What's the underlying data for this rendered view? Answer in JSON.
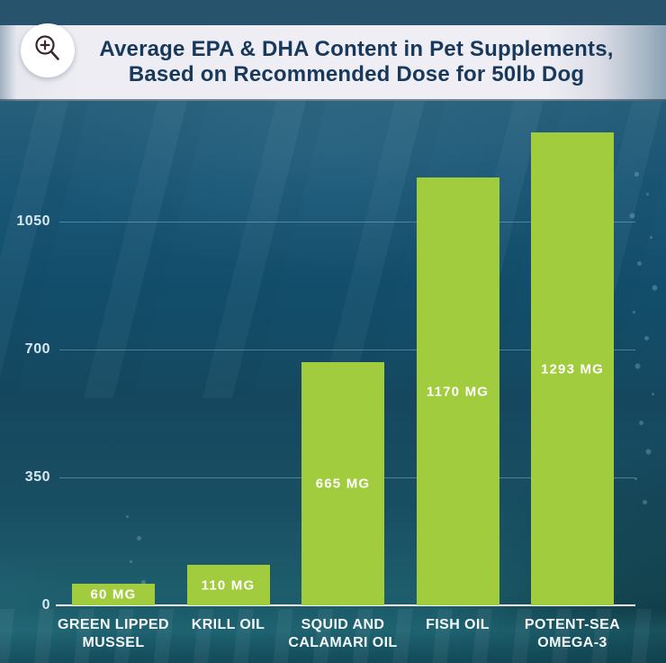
{
  "header": {
    "title_line1": "Average EPA & DHA Content in Pet Supplements,",
    "title_line2": "Based on Recommended Dose for 50lb Dog",
    "zoom_icon": "magnifier-zoom-in-icon"
  },
  "chart_data": {
    "type": "bar",
    "title": "Average EPA & DHA Content in Pet Supplements, Based on Recommended Dose for 50lb Dog",
    "unit": "MG",
    "categories": [
      "GREEN LIPPED MUSSEL",
      "KRILL OIL",
      "SQUID AND CALAMARI OIL",
      "FISH OIL",
      "POTENT-SEA OMEGA-3"
    ],
    "category_labels": [
      "GREEN LIPPED\nMUSSEL",
      "KRILL OIL",
      "SQUID AND\nCALAMARI OIL",
      "FISH OIL",
      "POTENT-SEA\nOMEGA-3"
    ],
    "values": [
      60,
      110,
      665,
      1170,
      1293
    ],
    "value_labels": [
      "60 MG",
      "110 MG",
      "665 MG",
      "1170 MG",
      "1293 MG"
    ],
    "y_ticks": [
      0,
      350,
      700,
      1050
    ],
    "ylim": [
      0,
      1350
    ],
    "grid": true,
    "legend": "none",
    "bar_color": "#a0cc3e",
    "value_label_color": "#ffffff",
    "axis_label_color": "#d8e8f0"
  },
  "colors": {
    "bar_green": "#a0cc3e",
    "banner_bg": "#ededf3",
    "title_navy": "#18395c",
    "ocean_top": "#27536c",
    "ocean_mid": "#124e6b",
    "ocean_floor": "#1d5d6c",
    "magnifier_stroke": "#3c262e"
  }
}
